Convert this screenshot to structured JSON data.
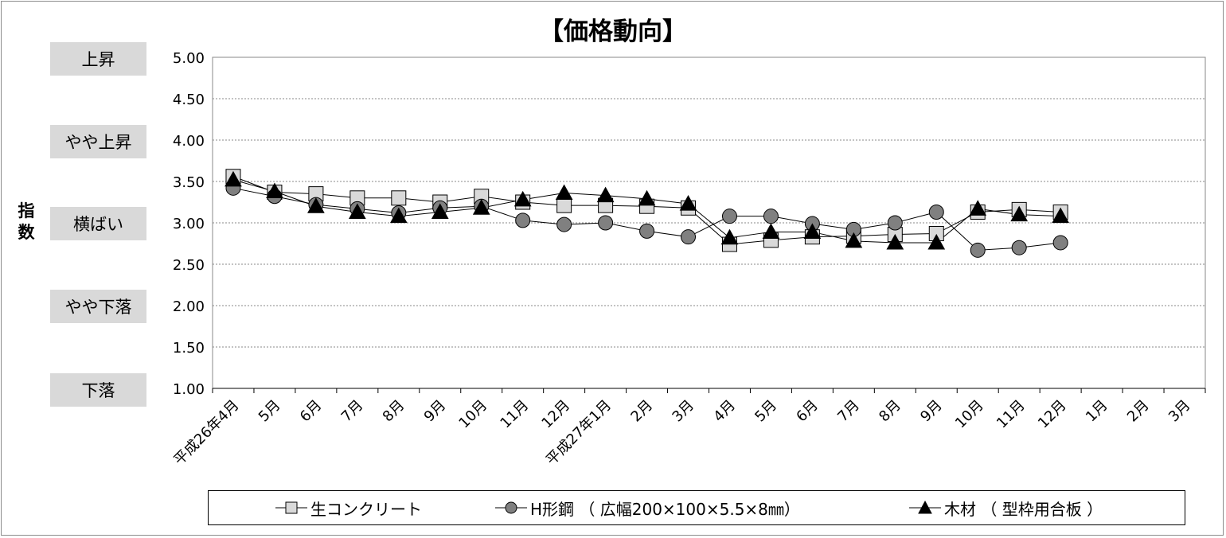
{
  "chart_data": {
    "type": "line",
    "title": "【価格動向】",
    "ylabel": "指数",
    "ylim": [
      1.0,
      5.0
    ],
    "y_ticks": [
      "5.00",
      "4.50",
      "4.00",
      "3.50",
      "3.00",
      "2.50",
      "2.00",
      "1.50",
      "1.00"
    ],
    "y_levels": [
      {
        "label": "上昇",
        "value": 5.0
      },
      {
        "label": "やや上昇",
        "value": 4.0
      },
      {
        "label": "横ばい",
        "value": 3.0
      },
      {
        "label": "やや下落",
        "value": 2.0
      },
      {
        "label": "下落",
        "value": 1.0
      }
    ],
    "categories": [
      "平成26年4月",
      "5月",
      "6月",
      "7月",
      "8月",
      "9月",
      "10月",
      "11月",
      "12月",
      "平成27年1月",
      "2月",
      "3月",
      "4月",
      "5月",
      "6月",
      "7月",
      "8月",
      "9月",
      "10月",
      "11月",
      "12月",
      "1月",
      "2月",
      "3月"
    ],
    "grid": true,
    "legend_position": "bottom",
    "series": [
      {
        "name": "生コンクリート",
        "marker": "square",
        "color": "#d9d9d9",
        "values": [
          3.56,
          3.37,
          3.35,
          3.3,
          3.3,
          3.25,
          3.32,
          3.25,
          3.21,
          3.21,
          3.2,
          3.18,
          2.74,
          2.79,
          2.83,
          2.84,
          2.86,
          2.87,
          3.13,
          3.16,
          3.13,
          null,
          null,
          null
        ]
      },
      {
        "name": "H形鋼 (広幅200×100×5.5×8mm)",
        "marker": "circle",
        "color": "#808080",
        "values": [
          3.42,
          3.32,
          3.22,
          3.17,
          3.12,
          3.18,
          3.2,
          3.03,
          2.98,
          3.0,
          2.9,
          2.83,
          3.08,
          3.08,
          2.99,
          2.92,
          3.0,
          3.13,
          2.67,
          2.7,
          2.76,
          null,
          null,
          null
        ]
      },
      {
        "name": "木材 (型枠用合板)",
        "marker": "triangle",
        "color": "#000000",
        "values": [
          3.52,
          3.38,
          3.2,
          3.13,
          3.08,
          3.13,
          3.18,
          3.28,
          3.36,
          3.33,
          3.29,
          3.23,
          2.82,
          2.89,
          2.89,
          2.78,
          2.76,
          2.76,
          3.17,
          3.1,
          3.08,
          null,
          null,
          null
        ]
      }
    ]
  },
  "legend": {
    "items": [
      {
        "label": "生コンクリート"
      },
      {
        "label": "H形鋼 （ 広幅200×100×5.5×8㎜）"
      },
      {
        "label": "木材 （ 型枠用合板 ）"
      }
    ]
  }
}
